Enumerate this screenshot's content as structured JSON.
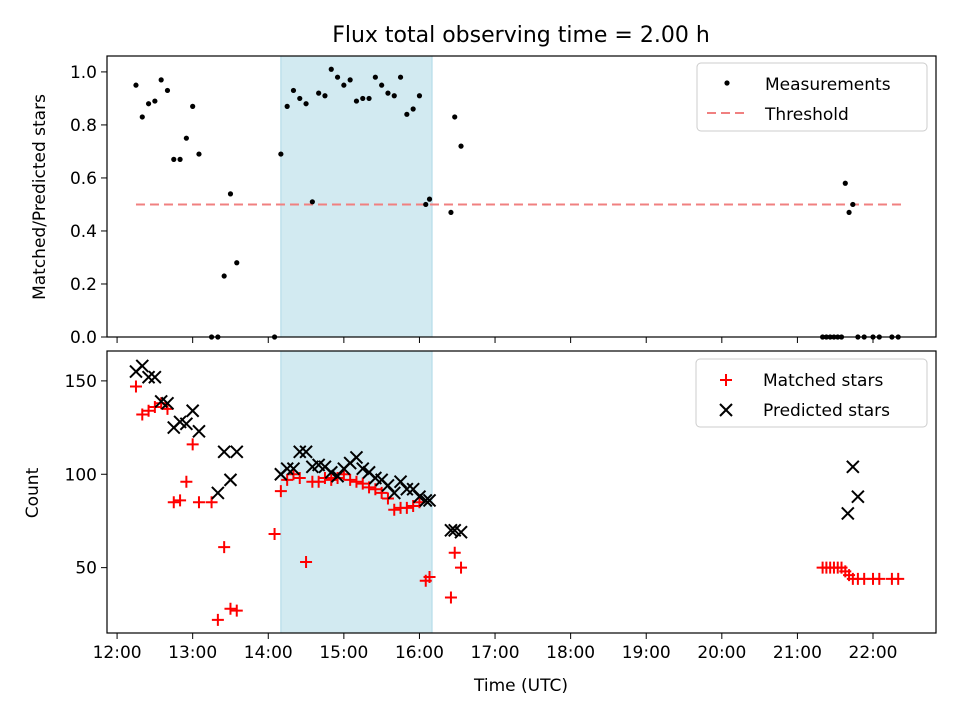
{
  "title": "Flux total observing time = 2.00 h",
  "xlabel": "Time (UTC)",
  "x_ticks": [
    "12:00",
    "13:00",
    "14:00",
    "15:00",
    "16:00",
    "17:00",
    "18:00",
    "19:00",
    "20:00",
    "21:00",
    "22:00"
  ],
  "colors": {
    "threshold": "#f08080",
    "shade": "#add8e6",
    "matched": "#ff0000",
    "predicted": "#000000",
    "measurement": "#000000"
  },
  "chart_data": [
    {
      "type": "scatter",
      "panel": "top",
      "ylabel": "Matched/Predicted stars",
      "xlim": [
        "11:52",
        "22:50"
      ],
      "ylim": [
        0,
        1.06
      ],
      "y_ticks": [
        "0.0",
        "0.2",
        "0.4",
        "0.6",
        "0.8",
        "1.0"
      ],
      "legend": {
        "placement": "top-right",
        "entries": [
          "Measurements",
          "Threshold"
        ]
      },
      "shaded_interval": [
        "14:10",
        "16:10"
      ],
      "threshold": {
        "name": "Threshold",
        "value": 0.5,
        "x_range": [
          "12:15",
          "22:23"
        ]
      },
      "series": [
        {
          "name": "Measurements",
          "x": [
            "12:15",
            "12:20",
            "12:25",
            "12:30",
            "12:35",
            "12:40",
            "12:45",
            "12:50",
            "12:55",
            "13:00",
            "13:05",
            "13:15",
            "13:20",
            "13:25",
            "13:30",
            "13:35",
            "14:05",
            "14:10",
            "14:15",
            "14:20",
            "14:25",
            "14:30",
            "14:35",
            "14:40",
            "14:45",
            "14:50",
            "14:55",
            "15:00",
            "15:05",
            "15:10",
            "15:15",
            "15:20",
            "15:25",
            "15:30",
            "15:35",
            "15:40",
            "15:45",
            "15:50",
            "15:55",
            "16:00",
            "16:05",
            "16:08",
            "16:25",
            "16:28",
            "16:33",
            "21:20",
            "21:23",
            "21:26",
            "21:29",
            "21:32",
            "21:35",
            "21:38",
            "21:41",
            "21:44",
            "21:48",
            "21:53",
            "22:00",
            "22:05",
            "22:15",
            "22:20"
          ],
          "y": [
            0.95,
            0.83,
            0.88,
            0.89,
            0.97,
            0.93,
            0.67,
            0.67,
            0.75,
            0.87,
            0.69,
            0.0,
            0.0,
            0.23,
            0.54,
            0.28,
            0.0,
            0.69,
            0.87,
            0.93,
            0.9,
            0.88,
            0.51,
            0.92,
            0.91,
            1.01,
            0.98,
            0.95,
            0.97,
            0.89,
            0.9,
            0.9,
            0.98,
            0.95,
            0.92,
            0.91,
            0.98,
            0.84,
            0.86,
            0.91,
            0.5,
            0.52,
            0.47,
            0.83,
            0.72,
            0.0,
            0.0,
            0.0,
            0.0,
            0.0,
            0.0,
            0.58,
            0.47,
            0.5,
            0.0,
            0.0,
            0.0,
            0.0,
            0.0,
            0.0
          ]
        }
      ]
    },
    {
      "type": "scatter",
      "panel": "bottom",
      "ylabel": "Count",
      "xlim": [
        "11:52",
        "22:50"
      ],
      "ylim": [
        15,
        166
      ],
      "y_ticks": [
        "50",
        "100",
        "150"
      ],
      "legend": {
        "placement": "top-right",
        "entries": [
          "Matched stars",
          "Predicted stars"
        ]
      },
      "shaded_interval": [
        "14:10",
        "16:10"
      ],
      "series": [
        {
          "name": "Matched stars",
          "x": [
            "12:15",
            "12:20",
            "12:25",
            "12:30",
            "12:35",
            "12:40",
            "12:45",
            "12:50",
            "12:55",
            "13:00",
            "13:05",
            "13:15",
            "13:20",
            "13:25",
            "13:30",
            "13:35",
            "14:05",
            "14:10",
            "14:15",
            "14:20",
            "14:25",
            "14:30",
            "14:35",
            "14:40",
            "14:45",
            "14:50",
            "14:55",
            "15:00",
            "15:05",
            "15:10",
            "15:15",
            "15:20",
            "15:25",
            "15:30",
            "15:35",
            "15:40",
            "15:45",
            "15:50",
            "15:55",
            "16:00",
            "16:05",
            "16:08",
            "16:25",
            "16:28",
            "16:33",
            "21:20",
            "21:23",
            "21:26",
            "21:29",
            "21:32",
            "21:35",
            "21:38",
            "21:41",
            "21:44",
            "21:48",
            "21:53",
            "22:00",
            "22:05",
            "22:15",
            "22:20"
          ],
          "y": [
            147,
            132,
            134,
            136,
            138,
            135,
            85,
            86,
            96,
            116,
            85,
            85,
            22,
            61,
            28,
            27,
            68,
            91,
            97,
            100,
            98,
            53,
            96,
            96,
            98,
            97,
            98,
            100,
            97,
            96,
            95,
            93,
            92,
            90,
            87,
            81,
            82,
            82,
            83,
            85,
            43,
            45,
            34,
            58,
            50,
            50,
            50,
            50,
            50,
            50,
            50,
            48,
            46,
            44,
            44,
            44,
            44,
            44,
            44,
            44
          ]
        },
        {
          "name": "Predicted stars",
          "x": [
            "12:15",
            "12:20",
            "12:25",
            "12:30",
            "12:35",
            "12:40",
            "12:45",
            "12:50",
            "12:55",
            "13:00",
            "13:05",
            "13:20",
            "13:25",
            "13:30",
            "13:35",
            "14:10",
            "14:15",
            "14:20",
            "14:25",
            "14:30",
            "14:35",
            "14:40",
            "14:45",
            "14:50",
            "14:55",
            "15:00",
            "15:05",
            "15:10",
            "15:15",
            "15:20",
            "15:25",
            "15:30",
            "15:35",
            "15:40",
            "15:45",
            "15:50",
            "15:55",
            "16:00",
            "16:05",
            "16:08",
            "16:25",
            "16:28",
            "16:33",
            "21:40",
            "21:44",
            "21:48"
          ],
          "y": [
            155,
            158,
            152,
            152,
            139,
            138,
            125,
            128,
            127,
            134,
            123,
            90,
            112,
            97,
            112,
            100,
            103,
            103,
            112,
            112,
            104,
            105,
            104,
            101,
            99,
            103,
            106,
            109,
            103,
            101,
            98,
            97,
            94,
            90,
            96,
            92,
            92,
            88,
            86,
            86,
            70,
            70,
            69,
            79,
            104,
            88
          ]
        }
      ]
    }
  ]
}
